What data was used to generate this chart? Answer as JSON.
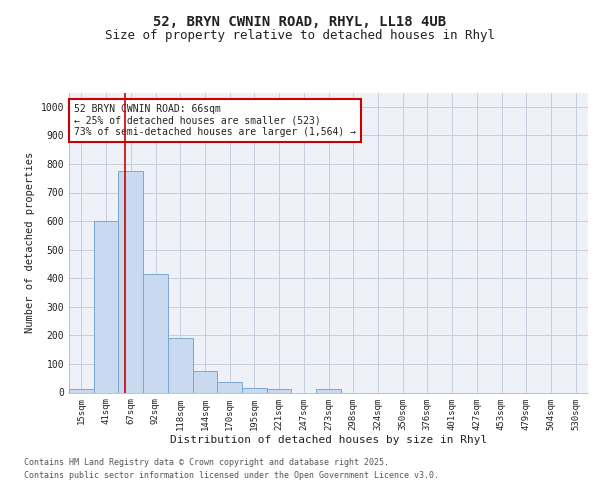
{
  "title_line1": "52, BRYN CWNIN ROAD, RHYL, LL18 4UB",
  "title_line2": "Size of property relative to detached houses in Rhyl",
  "xlabel": "Distribution of detached houses by size in Rhyl",
  "ylabel": "Number of detached properties",
  "categories": [
    "15sqm",
    "41sqm",
    "67sqm",
    "92sqm",
    "118sqm",
    "144sqm",
    "170sqm",
    "195sqm",
    "221sqm",
    "247sqm",
    "273sqm",
    "298sqm",
    "324sqm",
    "350sqm",
    "376sqm",
    "401sqm",
    "427sqm",
    "453sqm",
    "479sqm",
    "504sqm",
    "530sqm"
  ],
  "values": [
    13,
    600,
    775,
    415,
    190,
    75,
    38,
    17,
    13,
    0,
    13,
    0,
    0,
    0,
    0,
    0,
    0,
    0,
    0,
    0,
    0
  ],
  "bar_color": "#c9d9f0",
  "bar_edge_color": "#7ba7d4",
  "red_line_x": 1.75,
  "annotation_text": "52 BRYN CWNIN ROAD: 66sqm\n← 25% of detached houses are smaller (523)\n73% of semi-detached houses are larger (1,564) →",
  "annotation_box_color": "#ffffff",
  "annotation_box_edge_color": "#cc0000",
  "ylim": [
    0,
    1050
  ],
  "yticks": [
    0,
    100,
    200,
    300,
    400,
    500,
    600,
    700,
    800,
    900,
    1000
  ],
  "grid_color": "#c0c8d8",
  "bg_color": "#eef2f8",
  "footer_line1": "Contains HM Land Registry data © Crown copyright and database right 2025.",
  "footer_line2": "Contains public sector information licensed under the Open Government Licence v3.0.",
  "font_color": "#222222",
  "title_fontsize": 10,
  "subtitle_fontsize": 9,
  "tick_fontsize": 6.5,
  "xlabel_fontsize": 8,
  "ylabel_fontsize": 7.5,
  "footer_fontsize": 6,
  "annotation_fontsize": 7
}
